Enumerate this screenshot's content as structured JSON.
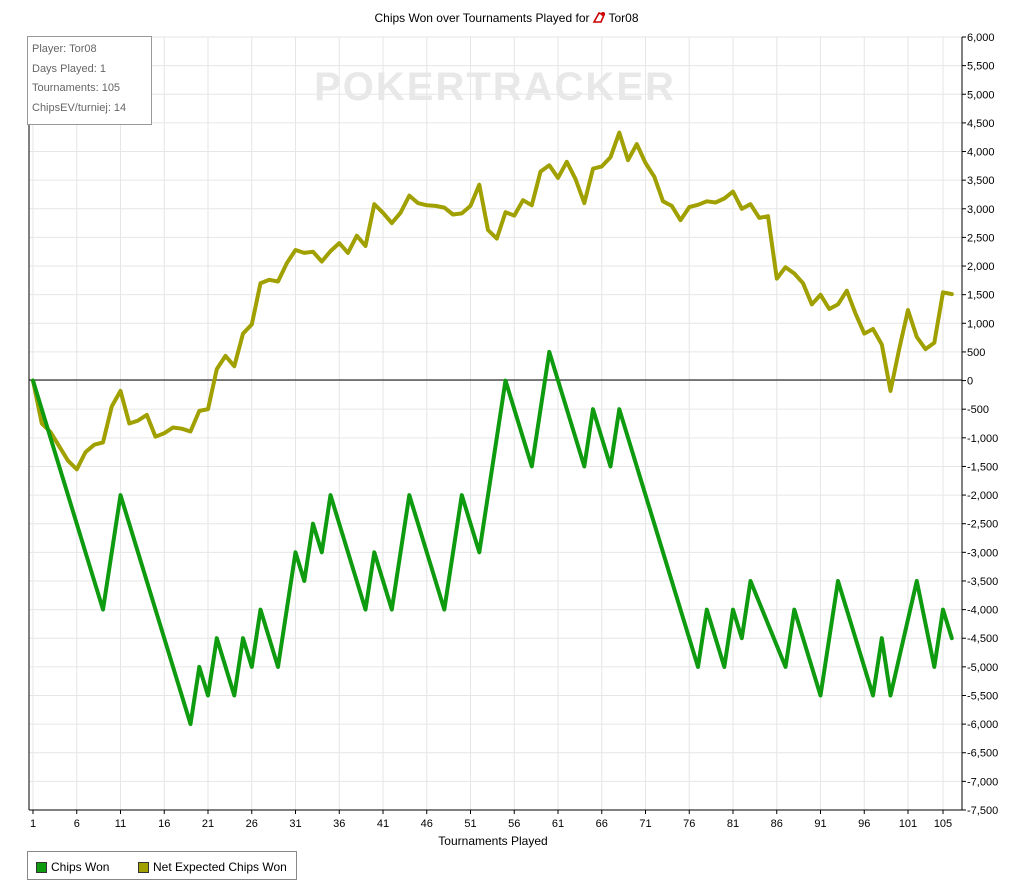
{
  "title": "Chips Won over Tournaments Played for",
  "player_name_title": "Tor08",
  "watermark": "POKERTRACKER",
  "info_box": [
    "Player: Tor08",
    "Days Played: 1",
    "Tournaments: 105",
    "ChipsEV/turniej: 14"
  ],
  "legend": [
    {
      "label": "Chips Won",
      "color": "#0f9b0f"
    },
    {
      "label": "Net Expected Chips Won",
      "color": "#a0a000"
    }
  ],
  "chart_data": {
    "type": "line",
    "title": "Chips Won over Tournaments Played for Tor08",
    "xlabel": "Tournaments Played",
    "ylabel": "",
    "xlim": [
      1,
      105
    ],
    "ylim": [
      -7500,
      6000
    ],
    "x_ticks": [
      "1",
      "6",
      "11",
      "16",
      "21",
      "26",
      "31",
      "36",
      "41",
      "46",
      "51",
      "56",
      "61",
      "66",
      "71",
      "76",
      "81",
      "86",
      "91",
      "96",
      "101",
      "105"
    ],
    "y_ticks": [
      "6,000",
      "5,500",
      "5,000",
      "4,500",
      "4,000",
      "3,500",
      "3,000",
      "2,500",
      "2,000",
      "1,500",
      "1,000",
      "500",
      "0",
      "-500",
      "-1,000",
      "-1,500",
      "-2,000",
      "-2,500",
      "-3,000",
      "-3,500",
      "-4,000",
      "-4,500",
      "-5,000",
      "-5,500",
      "-6,000",
      "-6,500",
      "-7,000",
      "-7,500"
    ],
    "grid": true,
    "legend_position": "bottom-left",
    "series": [
      {
        "name": "Chips Won",
        "color": "#0f9b0f",
        "points": [
          [
            1,
            0
          ],
          [
            9,
            -4000
          ],
          [
            11,
            -2000
          ],
          [
            19,
            -6000
          ],
          [
            20,
            -5000
          ],
          [
            21,
            -5500
          ],
          [
            22,
            -4500
          ],
          [
            24,
            -5500
          ],
          [
            25,
            -4500
          ],
          [
            26,
            -5000
          ],
          [
            27,
            -4000
          ],
          [
            29,
            -5000
          ],
          [
            31,
            -3000
          ],
          [
            32,
            -3500
          ],
          [
            33,
            -2500
          ],
          [
            34,
            -3000
          ],
          [
            35,
            -2000
          ],
          [
            39,
            -4000
          ],
          [
            40,
            -3000
          ],
          [
            42,
            -4000
          ],
          [
            44,
            -2000
          ],
          [
            48,
            -4000
          ],
          [
            50,
            -2000
          ],
          [
            52,
            -3000
          ],
          [
            55,
            0
          ],
          [
            58,
            -1500
          ],
          [
            60,
            500
          ],
          [
            64,
            -1500
          ],
          [
            65,
            -500
          ],
          [
            67,
            -1500
          ],
          [
            68,
            -500
          ],
          [
            77,
            -5000
          ],
          [
            78,
            -4000
          ],
          [
            80,
            -5000
          ],
          [
            81,
            -4000
          ],
          [
            82,
            -4500
          ],
          [
            83,
            -3500
          ],
          [
            87,
            -5000
          ],
          [
            88,
            -4000
          ],
          [
            91,
            -5500
          ],
          [
            93,
            -3500
          ],
          [
            97,
            -5500
          ],
          [
            98,
            -4500
          ],
          [
            99,
            -5500
          ],
          [
            102,
            -3500
          ],
          [
            104,
            -5000
          ],
          [
            105,
            -4000
          ],
          [
            106,
            -4500
          ]
        ]
      },
      {
        "name": "Net Expected Chips Won",
        "color": "#a0a000",
        "points": [
          [
            1,
            0
          ],
          [
            2,
            -750
          ],
          [
            3,
            -900
          ],
          [
            4,
            -1150
          ],
          [
            5,
            -1400
          ],
          [
            6,
            -1550
          ],
          [
            7,
            -1250
          ],
          [
            8,
            -1120
          ],
          [
            9,
            -1080
          ],
          [
            10,
            -450
          ],
          [
            11,
            -180
          ],
          [
            12,
            -750
          ],
          [
            13,
            -700
          ],
          [
            14,
            -600
          ],
          [
            15,
            -980
          ],
          [
            16,
            -920
          ],
          [
            17,
            -820
          ],
          [
            18,
            -840
          ],
          [
            19,
            -890
          ],
          [
            20,
            -530
          ],
          [
            21,
            -500
          ],
          [
            22,
            200
          ],
          [
            23,
            430
          ],
          [
            24,
            250
          ],
          [
            25,
            820
          ],
          [
            26,
            980
          ],
          [
            27,
            1700
          ],
          [
            28,
            1760
          ],
          [
            29,
            1730
          ],
          [
            30,
            2050
          ],
          [
            31,
            2280
          ],
          [
            32,
            2230
          ],
          [
            33,
            2250
          ],
          [
            34,
            2080
          ],
          [
            35,
            2260
          ],
          [
            36,
            2400
          ],
          [
            37,
            2230
          ],
          [
            38,
            2530
          ],
          [
            39,
            2350
          ],
          [
            40,
            3080
          ],
          [
            41,
            2930
          ],
          [
            42,
            2750
          ],
          [
            43,
            2930
          ],
          [
            44,
            3230
          ],
          [
            45,
            3100
          ],
          [
            46,
            3060
          ],
          [
            47,
            3050
          ],
          [
            48,
            3020
          ],
          [
            49,
            2900
          ],
          [
            50,
            2920
          ],
          [
            51,
            3050
          ],
          [
            52,
            3420
          ],
          [
            53,
            2630
          ],
          [
            54,
            2480
          ],
          [
            55,
            2940
          ],
          [
            56,
            2880
          ],
          [
            57,
            3150
          ],
          [
            58,
            3060
          ],
          [
            59,
            3650
          ],
          [
            60,
            3760
          ],
          [
            61,
            3540
          ],
          [
            62,
            3820
          ],
          [
            63,
            3520
          ],
          [
            64,
            3100
          ],
          [
            65,
            3700
          ],
          [
            66,
            3740
          ],
          [
            67,
            3900
          ],
          [
            68,
            4330
          ],
          [
            69,
            3850
          ],
          [
            70,
            4130
          ],
          [
            71,
            3800
          ],
          [
            72,
            3560
          ],
          [
            73,
            3130
          ],
          [
            74,
            3050
          ],
          [
            75,
            2800
          ],
          [
            76,
            3030
          ],
          [
            77,
            3070
          ],
          [
            78,
            3130
          ],
          [
            79,
            3110
          ],
          [
            80,
            3180
          ],
          [
            81,
            3300
          ],
          [
            82,
            3000
          ],
          [
            83,
            3080
          ],
          [
            84,
            2840
          ],
          [
            85,
            2870
          ],
          [
            86,
            1780
          ],
          [
            87,
            1980
          ],
          [
            88,
            1870
          ],
          [
            89,
            1700
          ],
          [
            90,
            1330
          ],
          [
            91,
            1500
          ],
          [
            92,
            1250
          ],
          [
            93,
            1330
          ],
          [
            94,
            1570
          ],
          [
            95,
            1170
          ],
          [
            96,
            820
          ],
          [
            97,
            900
          ],
          [
            98,
            630
          ],
          [
            99,
            -180
          ],
          [
            100,
            560
          ],
          [
            101,
            1230
          ],
          [
            102,
            760
          ],
          [
            103,
            550
          ],
          [
            104,
            660
          ],
          [
            105,
            1540
          ],
          [
            106,
            1510
          ]
        ]
      }
    ]
  }
}
